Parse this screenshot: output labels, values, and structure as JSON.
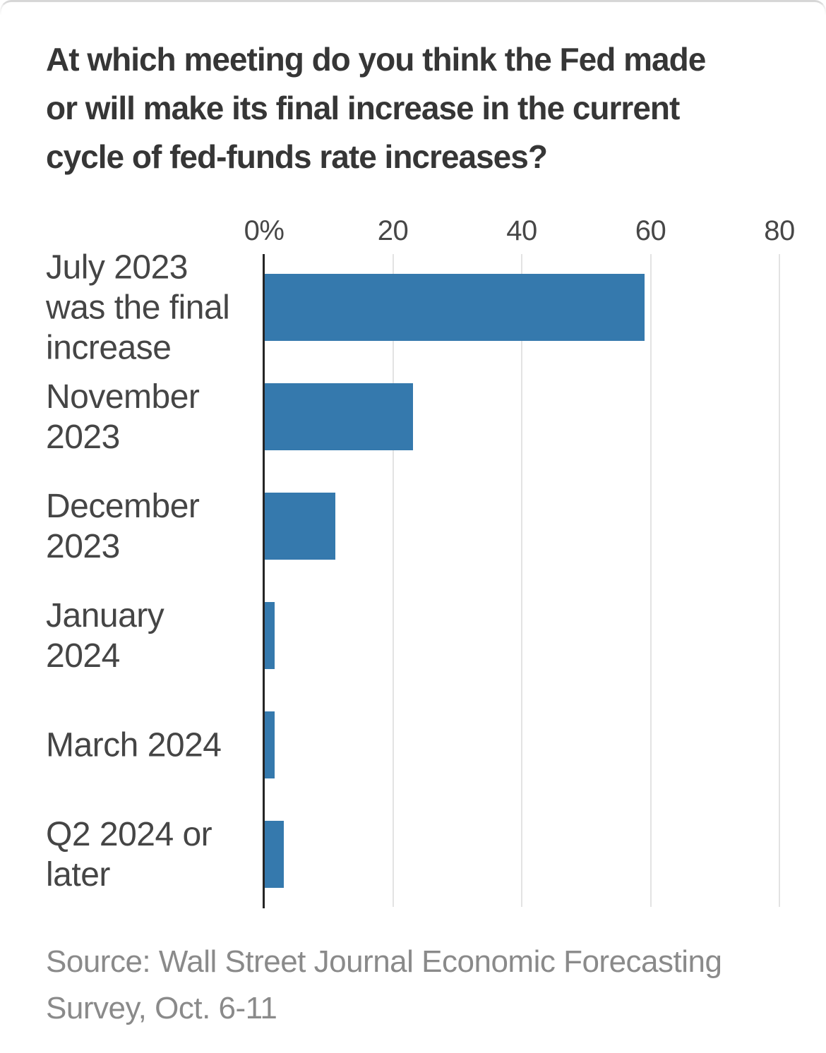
{
  "chart_data": {
    "type": "bar",
    "orientation": "horizontal",
    "title": "At which meeting do you think the Fed made\nor will make its final increase in the current\ncycle of fed-funds rate increases?",
    "categories": [
      "July 2023\nwas the final\nincrease",
      "November\n2023",
      "December\n2023",
      "January\n2024",
      "March 2024",
      "Q2 2024 or\nlater"
    ],
    "values": [
      59,
      23,
      11,
      1.5,
      1.5,
      3
    ],
    "value_unit": "%",
    "xlim": [
      0,
      80
    ],
    "xticks": [
      {
        "value": 0,
        "label": "0%"
      },
      {
        "value": 20,
        "label": "20"
      },
      {
        "value": 40,
        "label": "40"
      },
      {
        "value": 60,
        "label": "60"
      },
      {
        "value": 80,
        "label": "80"
      }
    ],
    "grid": "vertical-light",
    "legend": "none",
    "bar_color": "#3579ad",
    "axis_line_color": "#252525",
    "source": "Source: Wall Street Journal Economic Forecasting\nSurvey, Oct. 6-11"
  }
}
